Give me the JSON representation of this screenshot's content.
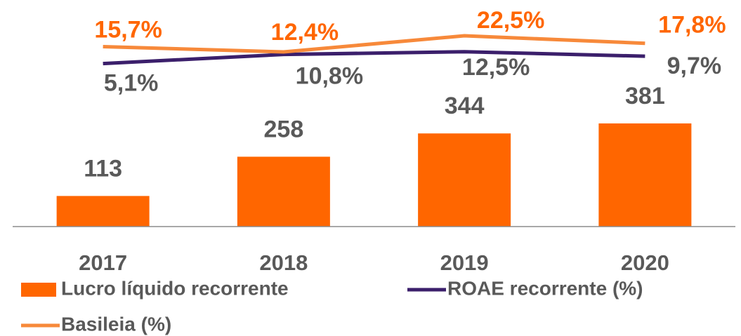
{
  "chart_data": {
    "type": "bar",
    "categories": [
      "2017",
      "2018",
      "2019",
      "2020"
    ],
    "series": [
      {
        "name": "Lucro líquido recorrente",
        "type": "bar",
        "color": "#ff6600",
        "values": [
          113,
          258,
          344,
          381
        ]
      },
      {
        "name": "ROAE recorrente (%)",
        "type": "line",
        "axis": "y2",
        "color": "#3b1f6b",
        "values": [
          5.1,
          10.8,
          12.5,
          9.7
        ],
        "value_labels": [
          "5,1%",
          "10,8%",
          "12,5%",
          "9,7%"
        ]
      },
      {
        "name": "Basileia (%)",
        "type": "line",
        "axis": "y2",
        "color": "#f7893a",
        "values": [
          15.7,
          12.4,
          22.5,
          17.8
        ],
        "value_labels": [
          "15,7%",
          "12,4%",
          "22,5%",
          "17,8%"
        ]
      }
    ],
    "ylim": [
      0,
      785
    ],
    "y2lim": [
      -3.4,
      36.1
    ]
  }
}
